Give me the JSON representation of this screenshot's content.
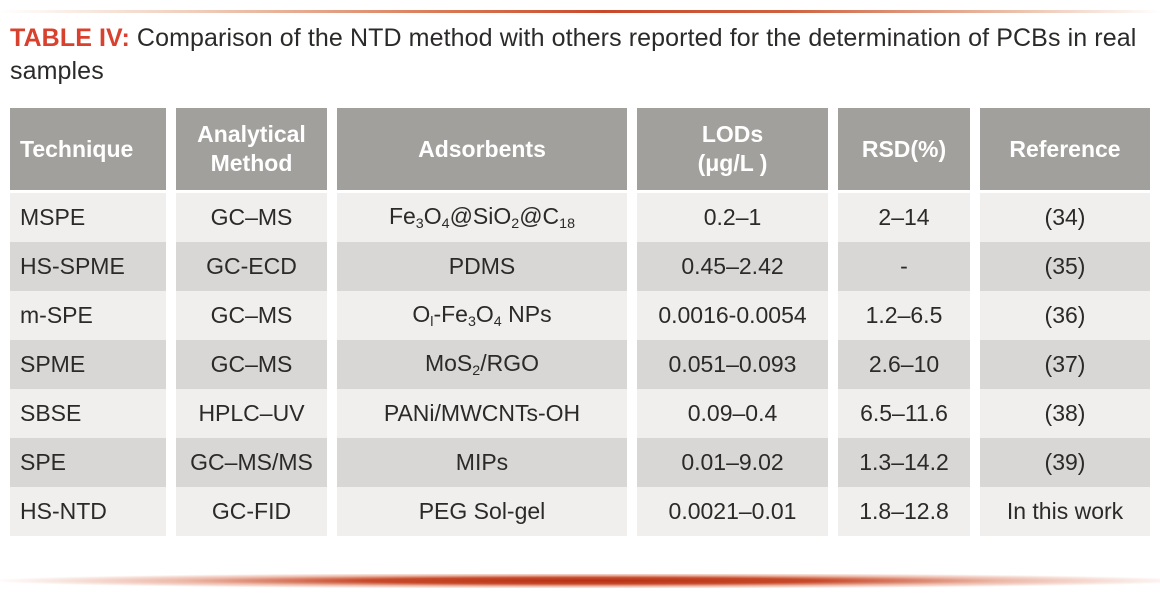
{
  "page": {
    "title_label": "TABLE IV:",
    "title_text": " Comparison of the NTD method with others reported for the determination of PCBs in real samples"
  },
  "colors": {
    "accent": "#d8412d",
    "header_bg": "#a1a09c",
    "row_light": "#f0efed",
    "row_dark": "#d8d7d5",
    "text": "#2b2a28",
    "rule_red": "#c8492a"
  },
  "table": {
    "headers": [
      "Technique",
      "Analytical\nMethod",
      "Adsorbents",
      "LODs\n(μg/L )",
      "RSD(%)",
      "Reference"
    ],
    "rows": [
      {
        "technique": "MSPE",
        "method": "GC–MS",
        "adsorbent": [
          {
            "t": "Fe"
          },
          {
            "sub": "3"
          },
          {
            "t": "O"
          },
          {
            "sub": "4"
          },
          {
            "t": "@SiO"
          },
          {
            "sub": "2"
          },
          {
            "t": "@C"
          },
          {
            "sub": "18"
          }
        ],
        "lods": "0.2–1",
        "rsd": "2–14",
        "reference": "(34)"
      },
      {
        "technique": "HS-SPME",
        "method": "GC-ECD",
        "adsorbent": [
          {
            "t": "PDMS"
          }
        ],
        "lods": "0.45–2.42",
        "rsd": "-",
        "reference": "(35)"
      },
      {
        "technique": "m-SPE",
        "method": "GC–MS",
        "adsorbent": [
          {
            "t": "O"
          },
          {
            "sub": "l"
          },
          {
            "t": "-Fe"
          },
          {
            "sub": "3"
          },
          {
            "t": "O"
          },
          {
            "sub": "4"
          },
          {
            "t": " NPs"
          }
        ],
        "lods": "0.0016-0.0054",
        "rsd": "1.2–6.5",
        "reference": "(36)"
      },
      {
        "technique": "SPME",
        "method": "GC–MS",
        "adsorbent": [
          {
            "t": "MoS"
          },
          {
            "sub": "2"
          },
          {
            "t": "/RGO"
          }
        ],
        "lods": "0.051–0.093",
        "rsd": "2.6–10",
        "reference": "(37)"
      },
      {
        "technique": "SBSE",
        "method": "HPLC–UV",
        "adsorbent": [
          {
            "t": "PANi/MWCNTs-OH"
          }
        ],
        "lods": "0.09–0.4",
        "rsd": "6.5–11.6",
        "reference": "(38)"
      },
      {
        "technique": "SPE",
        "method": "GC–MS/MS",
        "adsorbent": [
          {
            "t": "MIPs"
          }
        ],
        "lods": "0.01–9.02",
        "rsd": "1.3–14.2",
        "reference": "(39)"
      },
      {
        "technique": "HS-NTD",
        "method": "GC-FID",
        "adsorbent": [
          {
            "t": "PEG Sol-gel"
          }
        ],
        "lods": "0.0021–0.01",
        "rsd": "1.8–12.8",
        "reference": "In this work"
      }
    ]
  }
}
